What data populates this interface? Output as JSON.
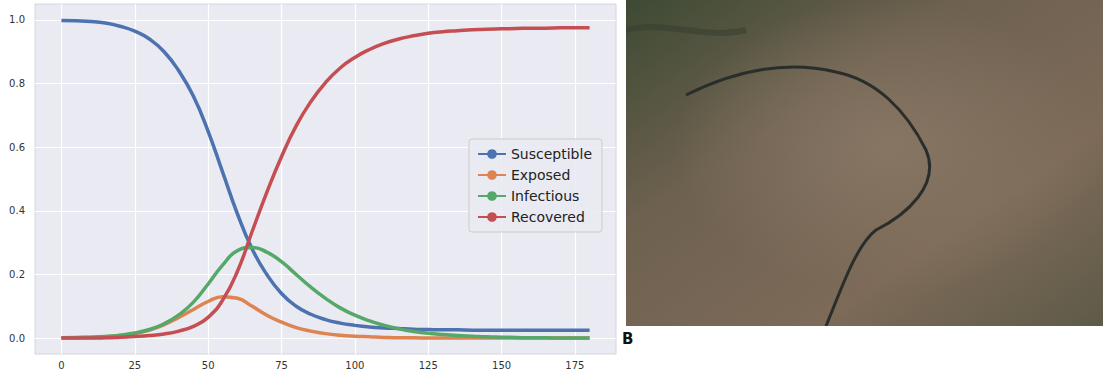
{
  "chart_data": {
    "type": "line",
    "x": [
      0,
      5,
      10,
      15,
      20,
      25,
      30,
      35,
      40,
      45,
      50,
      55,
      60,
      65,
      70,
      75,
      80,
      85,
      90,
      95,
      100,
      105,
      110,
      115,
      120,
      125,
      130,
      135,
      140,
      145,
      150,
      155,
      160,
      165,
      170,
      175,
      180
    ],
    "series": [
      {
        "name": "Susceptible",
        "color": "#4c72b0",
        "values": [
          0.998,
          0.997,
          0.995,
          0.99,
          0.98,
          0.965,
          0.94,
          0.9,
          0.84,
          0.76,
          0.65,
          0.52,
          0.39,
          0.28,
          0.2,
          0.14,
          0.1,
          0.075,
          0.058,
          0.047,
          0.04,
          0.035,
          0.032,
          0.03,
          0.028,
          0.027,
          0.026,
          0.026,
          0.025,
          0.025,
          0.025,
          0.025,
          0.025,
          0.025,
          0.025,
          0.025,
          0.025
        ]
      },
      {
        "name": "Exposed",
        "color": "#dd8452",
        "values": [
          0.001,
          0.001,
          0.002,
          0.004,
          0.008,
          0.014,
          0.025,
          0.042,
          0.065,
          0.09,
          0.115,
          0.13,
          0.125,
          0.1,
          0.072,
          0.05,
          0.033,
          0.022,
          0.014,
          0.009,
          0.006,
          0.004,
          0.002,
          0.001,
          0.001,
          0,
          0,
          0,
          0,
          0,
          0,
          0,
          0,
          0,
          0,
          0,
          0
        ]
      },
      {
        "name": "Infectious",
        "color": "#55a868",
        "values": [
          0.001,
          0.002,
          0.003,
          0.005,
          0.009,
          0.016,
          0.027,
          0.045,
          0.073,
          0.113,
          0.17,
          0.23,
          0.275,
          0.285,
          0.27,
          0.24,
          0.2,
          0.16,
          0.125,
          0.095,
          0.072,
          0.054,
          0.04,
          0.029,
          0.021,
          0.015,
          0.011,
          0.008,
          0.006,
          0.004,
          0.003,
          0.002,
          0.001,
          0.001,
          0,
          0,
          0
        ]
      },
      {
        "name": "Recovered",
        "color": "#c44e52",
        "values": [
          0,
          0,
          0,
          0.001,
          0.003,
          0.005,
          0.008,
          0.013,
          0.022,
          0.037,
          0.065,
          0.12,
          0.21,
          0.335,
          0.458,
          0.57,
          0.667,
          0.743,
          0.803,
          0.849,
          0.882,
          0.907,
          0.926,
          0.94,
          0.95,
          0.958,
          0.963,
          0.966,
          0.969,
          0.971,
          0.972,
          0.973,
          0.974,
          0.974,
          0.975,
          0.975,
          0.975
        ]
      }
    ],
    "xlim": [
      -9,
      189
    ],
    "xticks": [
      0,
      25,
      50,
      75,
      100,
      125,
      150,
      175
    ],
    "ylim": [
      -0.05,
      1.05
    ],
    "yticks": [
      {
        "value": 0,
        "label": "0.0"
      },
      0.2,
      0.4,
      0.6,
      0.8,
      {
        "value": 1,
        "label": "1.0"
      }
    ],
    "grid": true,
    "legend": "right"
  },
  "panel_label": "B"
}
